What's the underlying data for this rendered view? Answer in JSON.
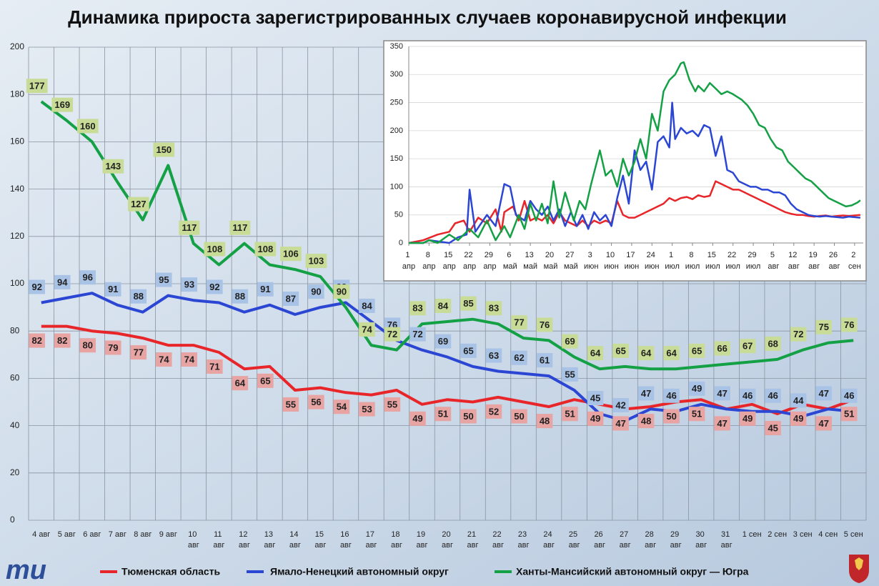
{
  "chart_data": [
    {
      "type": "line",
      "title": "Динамика прироста зарегистрированных случаев коронавирусной инфекции",
      "categories": [
        "4 авг",
        "5 авг",
        "6 авг",
        "7 авг",
        "8 авг",
        "9 авг",
        "10 авг",
        "11 авг",
        "12 авг",
        "13 авг",
        "14 авг",
        "15 авг",
        "16 авг",
        "17 авг",
        "18 авг",
        "19 авг",
        "20 авг",
        "21 авг",
        "22 авг",
        "23 авг",
        "24 авг",
        "25 авг",
        "26 авг",
        "27 авг",
        "28 авг",
        "29 авг",
        "30 авг",
        "31 авг",
        "1 сен",
        "2 сен",
        "3 сен",
        "4 сен",
        "5 сен"
      ],
      "series": [
        {
          "name": "Тюменская область",
          "color": "#e8262a",
          "label_color": "#e8a3a3",
          "values": [
            82,
            82,
            80,
            79,
            77,
            74,
            74,
            71,
            64,
            65,
            55,
            56,
            54,
            53,
            55,
            49,
            51,
            50,
            52,
            50,
            48,
            51,
            49,
            47,
            48,
            50,
            51,
            47,
            49,
            45,
            49,
            47,
            51
          ]
        },
        {
          "name": "Ямало-Ненецкий автономный округ",
          "color": "#2c46d4",
          "label_color": "#a9c3e6",
          "values": [
            92,
            94,
            96,
            91,
            88,
            95,
            93,
            92,
            88,
            91,
            87,
            90,
            92,
            84,
            76,
            72,
            69,
            65,
            63,
            62,
            61,
            55,
            45,
            42,
            47,
            46,
            49,
            47,
            46,
            46,
            44,
            47,
            46
          ]
        },
        {
          "name": "Ханты-Мансийский автономный округ — Югра",
          "color": "#14a045",
          "label_color": "#c9dc97",
          "values": [
            177,
            169,
            160,
            143,
            127,
            150,
            117,
            108,
            117,
            108,
            106,
            103,
            90,
            74,
            72,
            83,
            84,
            85,
            83,
            77,
            76,
            69,
            64,
            65,
            64,
            64,
            65,
            66,
            67,
            68,
            72,
            75,
            76
          ]
        }
      ],
      "ylim": [
        0,
        200
      ],
      "yticks": [
        0,
        20,
        40,
        60,
        80,
        100,
        120,
        140,
        160,
        180,
        200
      ],
      "grid": true
    },
    {
      "type": "line",
      "xlim": [
        0,
        157
      ],
      "xticks": [
        {
          "value": 0,
          "label": "1 апр"
        },
        {
          "value": 7,
          "label": "8 апр"
        },
        {
          "value": 14,
          "label": "15 апр"
        },
        {
          "value": 21,
          "label": "22 апр"
        },
        {
          "value": 28,
          "label": "29 апр"
        },
        {
          "value": 35,
          "label": "6 май"
        },
        {
          "value": 42,
          "label": "13 май"
        },
        {
          "value": 49,
          "label": "20 май"
        },
        {
          "value": 56,
          "label": "27 май"
        },
        {
          "value": 63,
          "label": "3 июн"
        },
        {
          "value": 70,
          "label": "10 июн"
        },
        {
          "value": 77,
          "label": "17 июн"
        },
        {
          "value": 84,
          "label": "24 июн"
        },
        {
          "value": 91,
          "label": "1 июл"
        },
        {
          "value": 98,
          "label": "8 июл"
        },
        {
          "value": 105,
          "label": "15 июл"
        },
        {
          "value": 112,
          "label": "22 июл"
        },
        {
          "value": 119,
          "label": "29 июл"
        },
        {
          "value": 126,
          "label": "5 авг"
        },
        {
          "value": 133,
          "label": "12 авг"
        },
        {
          "value": 140,
          "label": "19 авг"
        },
        {
          "value": 147,
          "label": "26 авг"
        },
        {
          "value": 154,
          "label": "2 сен"
        }
      ],
      "ylim": [
        0,
        350
      ],
      "yticks": [
        0,
        50,
        100,
        150,
        200,
        250,
        300,
        350
      ],
      "grid": true,
      "series": [
        {
          "color": "#e8262a",
          "x": [
            0,
            5,
            10,
            14,
            16,
            19,
            21,
            24,
            27,
            30,
            32,
            33,
            36,
            38,
            40,
            42,
            44,
            46,
            48,
            50,
            52,
            54,
            56,
            58,
            60,
            62,
            64,
            66,
            68,
            70,
            72,
            74,
            76,
            78,
            80,
            82,
            84,
            86,
            88,
            90,
            92,
            94,
            96,
            98,
            100,
            102,
            104,
            106,
            108,
            110,
            112,
            114,
            116,
            118,
            120,
            122,
            124,
            126,
            128,
            130,
            132,
            134,
            136,
            138,
            140,
            142,
            144,
            146,
            148,
            150,
            152,
            154,
            156
          ],
          "values": [
            0,
            5,
            15,
            20,
            35,
            40,
            20,
            45,
            35,
            60,
            20,
            55,
            65,
            40,
            75,
            40,
            45,
            40,
            50,
            35,
            55,
            40,
            35,
            30,
            40,
            30,
            40,
            35,
            40,
            35,
            75,
            50,
            45,
            45,
            50,
            55,
            60,
            65,
            70,
            80,
            75,
            80,
            82,
            78,
            85,
            82,
            84,
            110,
            105,
            100,
            95,
            95,
            90,
            85,
            80,
            75,
            70,
            65,
            60,
            55,
            52,
            50,
            50,
            48,
            47,
            48,
            49,
            47,
            48,
            49,
            48,
            49,
            50
          ]
        },
        {
          "color": "#2c46d4",
          "x": [
            0,
            5,
            7,
            14,
            17,
            20,
            21,
            23,
            27,
            30,
            33,
            35,
            37,
            40,
            42,
            44,
            46,
            48,
            50,
            52,
            54,
            56,
            58,
            60,
            62,
            64,
            66,
            68,
            70,
            72,
            74,
            76,
            78,
            80,
            82,
            84,
            86,
            88,
            90,
            91,
            92,
            94,
            96,
            98,
            100,
            102,
            104,
            106,
            108,
            110,
            112,
            114,
            116,
            118,
            120,
            122,
            124,
            126,
            128,
            130,
            132,
            134,
            136,
            138,
            140,
            142,
            144,
            146,
            148,
            150,
            152,
            154,
            156
          ],
          "values": [
            0,
            0,
            5,
            0,
            10,
            15,
            95,
            20,
            50,
            30,
            105,
            100,
            50,
            40,
            75,
            60,
            50,
            65,
            40,
            60,
            30,
            55,
            30,
            50,
            25,
            55,
            40,
            50,
            30,
            80,
            120,
            70,
            165,
            130,
            145,
            95,
            180,
            190,
            170,
            250,
            185,
            205,
            195,
            200,
            190,
            210,
            205,
            155,
            190,
            130,
            125,
            110,
            105,
            100,
            100,
            95,
            95,
            90,
            90,
            85,
            70,
            60,
            55,
            50,
            48,
            47,
            48,
            47,
            46,
            45,
            47,
            46,
            45
          ]
        },
        {
          "color": "#14a045",
          "x": [
            0,
            5,
            7,
            10,
            14,
            17,
            21,
            24,
            27,
            30,
            33,
            35,
            38,
            40,
            42,
            44,
            46,
            48,
            50,
            52,
            54,
            57,
            59,
            61,
            63,
            66,
            68,
            70,
            72,
            74,
            76,
            78,
            80,
            82,
            84,
            86,
            88,
            90,
            92,
            94,
            95,
            97,
            99,
            100,
            102,
            104,
            106,
            108,
            110,
            112,
            115,
            117,
            119,
            121,
            123,
            125,
            127,
            129,
            131,
            133,
            135,
            137,
            139,
            141,
            143,
            145,
            147,
            149,
            151,
            153,
            155,
            156
          ],
          "values": [
            0,
            0,
            5,
            0,
            15,
            5,
            25,
            10,
            40,
            5,
            30,
            10,
            50,
            25,
            70,
            40,
            70,
            35,
            110,
            45,
            90,
            40,
            75,
            60,
            105,
            165,
            120,
            130,
            100,
            150,
            120,
            145,
            185,
            150,
            230,
            200,
            270,
            290,
            300,
            320,
            322,
            290,
            270,
            280,
            270,
            285,
            275,
            265,
            270,
            265,
            255,
            245,
            230,
            210,
            205,
            185,
            170,
            165,
            145,
            135,
            125,
            115,
            110,
            100,
            90,
            80,
            75,
            70,
            65,
            67,
            72,
            76
          ]
        }
      ]
    }
  ]
}
